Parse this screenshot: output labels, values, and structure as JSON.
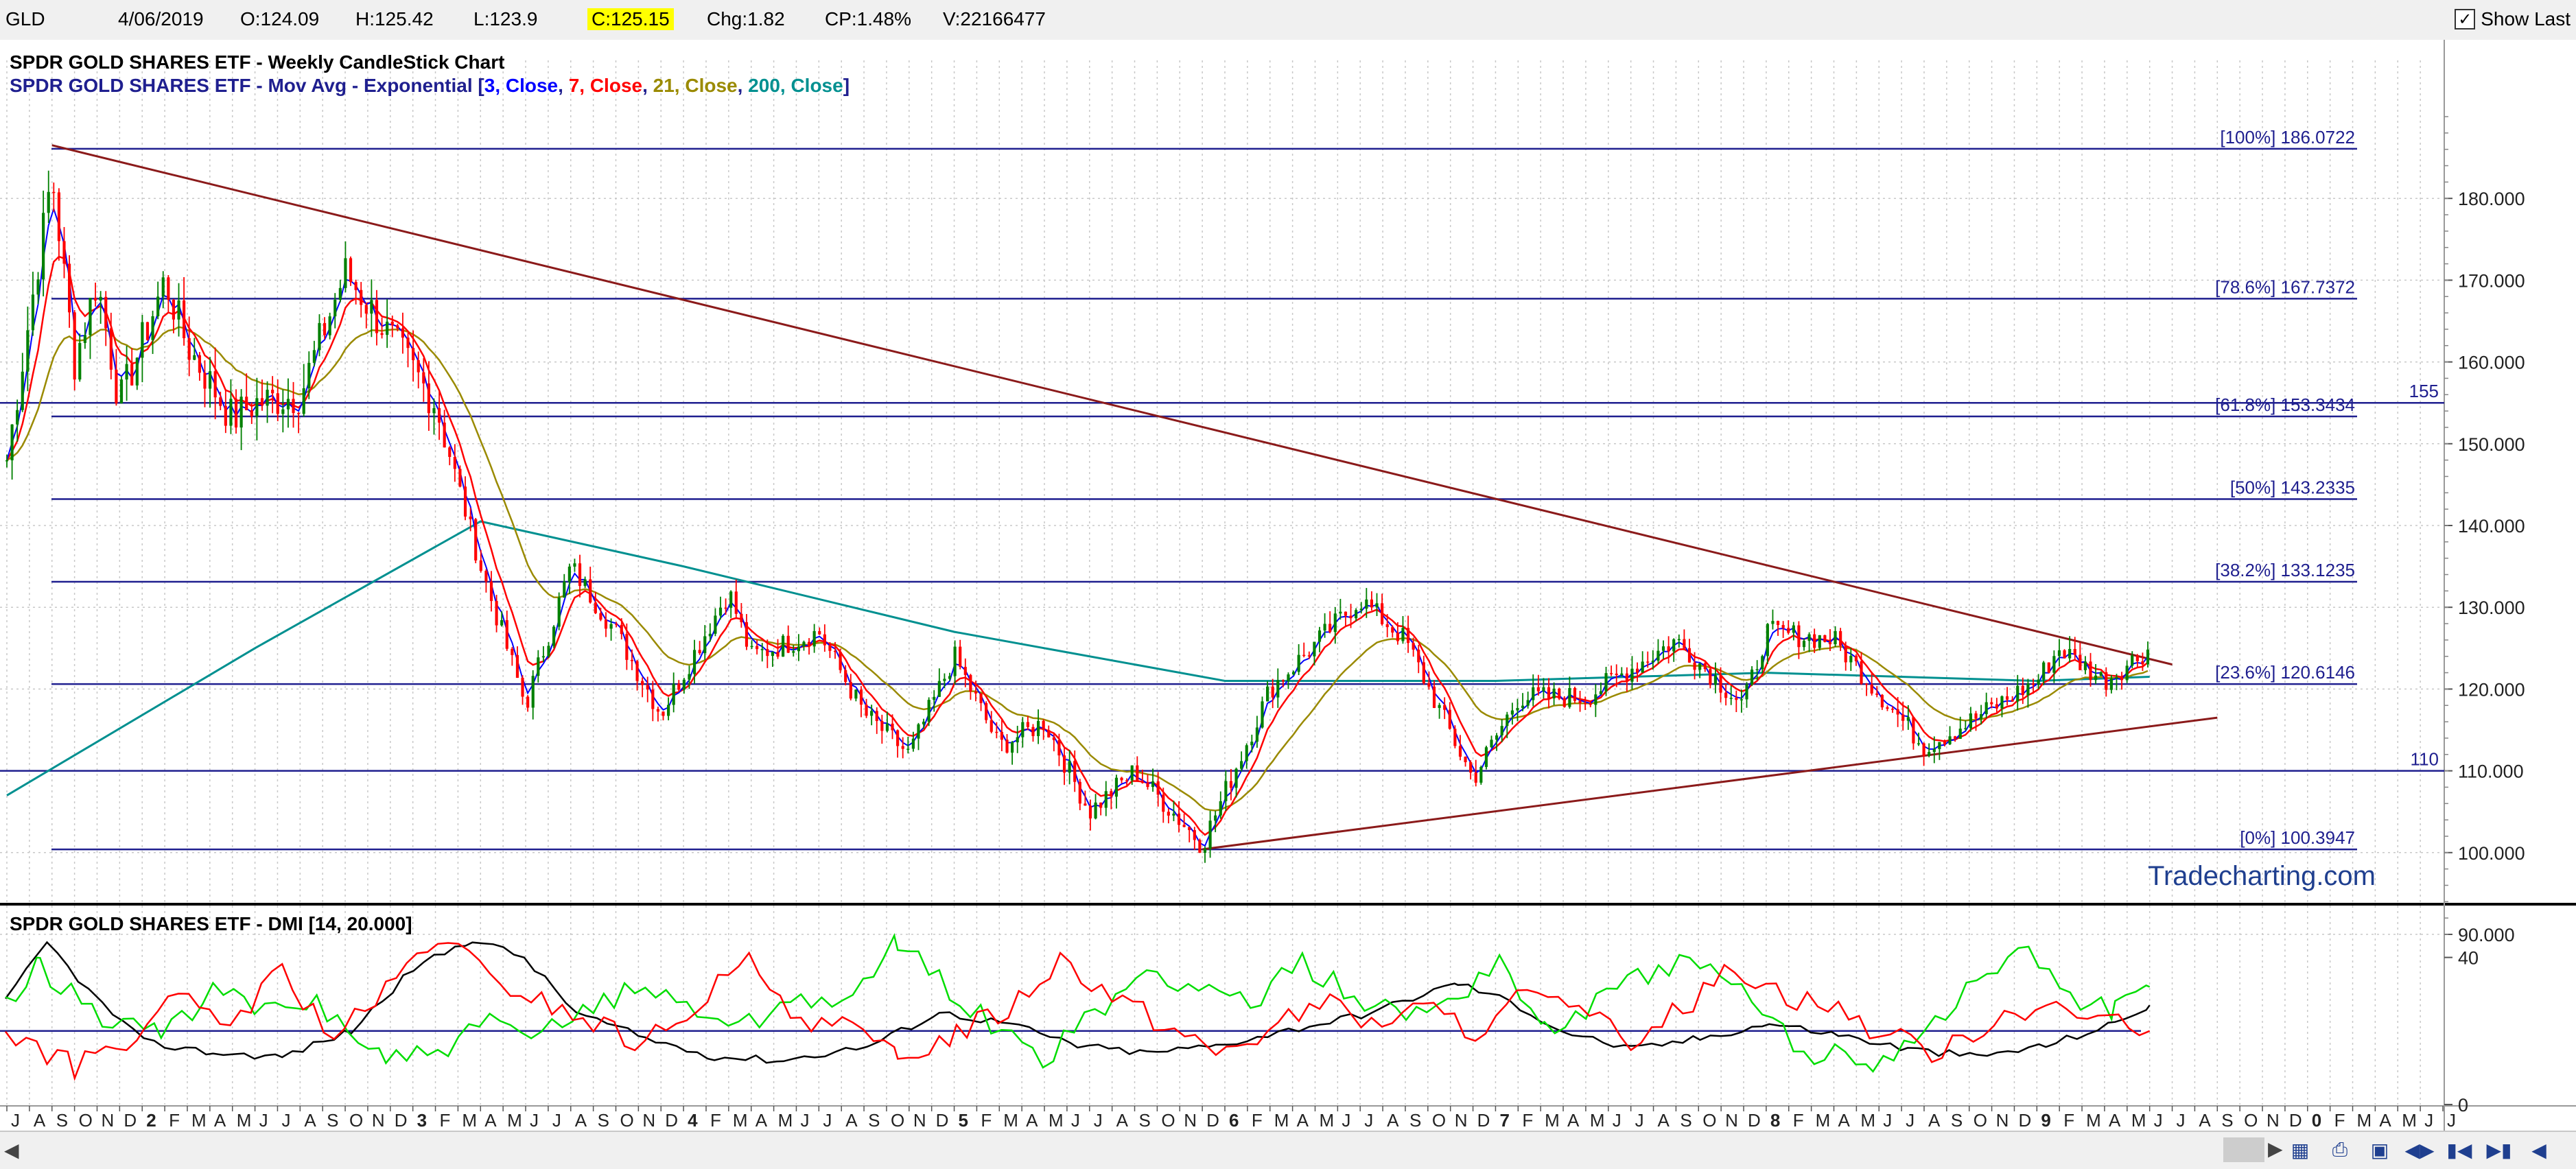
{
  "header": {
    "symbol": "GLD",
    "date": "4/06/2019",
    "open": "O:124.09",
    "high": "H:125.42",
    "low": "L:123.9",
    "close": "C:125.15",
    "change": "Chg:1.82",
    "change_pct": "CP:1.48%",
    "volume": "V:22166477",
    "show_last_label": "Show Last",
    "show_last_checked": true
  },
  "colors": {
    "up_candle": "#008000",
    "down_candle": "#ff0000",
    "fib_line": "#1f1f8f",
    "trend_line": "#8b1a1a",
    "ma3": "#0000ff",
    "ma7": "#ff0000",
    "ma21": "#9a8a00",
    "ma200": "#009090",
    "di_plus": "#00dd00",
    "di_minus": "#ff0000",
    "adx": "#000000",
    "watermark": "#1f3f8f"
  },
  "icons": {
    "scroll_left": "chevron-left-icon",
    "scroll_right": "chevron-right-icon",
    "nav": [
      "chart-settings-icon",
      "print-icon",
      "save-icon",
      "scroll-both-icon",
      "first-icon",
      "last-icon",
      "prev-icon"
    ]
  },
  "chart_data": [
    {
      "type": "candlestick",
      "title": "SPDR GOLD SHARES ETF - Weekly CandleStick Chart",
      "subtitle": {
        "prefix": "SPDR GOLD SHARES ETF - Mov Avg - Exponential [",
        "items": [
          {
            "text": "3, Close",
            "color": "#0000ff"
          },
          {
            "text": "7, Close",
            "color": "#ff0000"
          },
          {
            "text": "21, Close",
            "color": "#9a8a00"
          },
          {
            "text": "200, Close",
            "color": "#009090"
          }
        ],
        "suffix": "]"
      },
      "watermark": "Tradecharting.com",
      "ylim": [
        90,
        190
      ],
      "yticks": [
        "180.000",
        "170.000",
        "160.000",
        "150.000",
        "140.000",
        "130.000",
        "120.000",
        "110.000",
        "100.000",
        "90.000"
      ],
      "fib_levels": [
        {
          "label": "[100%] 186.0722",
          "value": 186.0722
        },
        {
          "label": "[78.6%] 167.7372",
          "value": 167.7372
        },
        {
          "label": "[61.8%] 153.3434",
          "value": 153.3434
        },
        {
          "label": "[50%] 143.2335",
          "value": 143.2335
        },
        {
          "label": "[38.2%] 133.1235",
          "value": 133.1235
        },
        {
          "label": "[23.6%] 120.6146",
          "value": 120.6146
        },
        {
          "label": "[0%] 100.3947",
          "value": 100.3947
        }
      ],
      "horizontal_lines": [
        {
          "label": "155",
          "value": 155
        },
        {
          "label": "110",
          "value": 110
        }
      ],
      "trend_lines": [
        {
          "from": [
            "2011-09",
            186.5
          ],
          "to": [
            "2019-07",
            123
          ]
        },
        {
          "from": [
            "2015-12",
            100.4
          ],
          "to": [
            "2019-09",
            116.5
          ]
        }
      ],
      "price_path": [
        [
          "2011-07",
          148
        ],
        [
          "2011-09",
          183
        ],
        [
          "2011-10",
          160
        ],
        [
          "2011-11",
          170
        ],
        [
          "2011-12",
          155
        ],
        [
          "2012-02",
          170
        ],
        [
          "2012-03",
          162
        ],
        [
          "2012-05",
          153
        ],
        [
          "2012-06",
          155
        ],
        [
          "2012-08",
          156
        ],
        [
          "2012-10",
          171
        ],
        [
          "2012-12",
          163
        ],
        [
          "2013-02",
          155
        ],
        [
          "2013-04",
          135
        ],
        [
          "2013-06",
          118
        ],
        [
          "2013-08",
          135
        ],
        [
          "2013-10",
          127
        ],
        [
          "2013-12",
          117
        ],
        [
          "2014-03",
          132
        ],
        [
          "2014-04",
          124
        ],
        [
          "2014-07",
          127
        ],
        [
          "2014-09",
          117
        ],
        [
          "2014-11",
          112
        ],
        [
          "2015-01",
          124
        ],
        [
          "2015-03",
          113
        ],
        [
          "2015-05",
          116
        ],
        [
          "2015-07",
          105
        ],
        [
          "2015-09",
          110
        ],
        [
          "2015-12",
          101
        ],
        [
          "2016-03",
          120
        ],
        [
          "2016-07",
          131
        ],
        [
          "2016-09",
          126
        ],
        [
          "2016-12",
          109
        ],
        [
          "2017-02",
          119
        ],
        [
          "2017-05",
          119
        ],
        [
          "2017-09",
          126
        ],
        [
          "2017-12",
          118
        ],
        [
          "2018-01",
          127
        ],
        [
          "2018-04",
          126
        ],
        [
          "2018-08",
          113
        ],
        [
          "2018-10",
          116
        ],
        [
          "2019-01",
          121
        ],
        [
          "2019-02",
          125
        ],
        [
          "2019-04",
          121
        ],
        [
          "2019-06",
          125
        ]
      ],
      "ma200_path": [
        [
          "2011-07",
          107
        ],
        [
          "2012-06",
          125
        ],
        [
          "2013-04",
          140.5
        ],
        [
          "2014-01",
          135
        ],
        [
          "2015-01",
          127
        ],
        [
          "2016-01",
          121
        ],
        [
          "2017-01",
          121
        ],
        [
          "2018-01",
          122
        ],
        [
          "2019-01",
          121
        ],
        [
          "2019-06",
          121.5
        ]
      ],
      "x_axis": {
        "start": "2011-07",
        "end": "2020-07",
        "month_labels": [
          "J",
          "A",
          "S",
          "O",
          "N",
          "D",
          "2",
          "F",
          "M",
          "A",
          "M",
          "J",
          "J",
          "A",
          "S",
          "O",
          "N",
          "D",
          "3",
          "F",
          "M",
          "A",
          "M",
          "J",
          "J",
          "A",
          "S",
          "O",
          "N",
          "D",
          "4",
          "F",
          "M",
          "A",
          "M",
          "J",
          "J",
          "A",
          "S",
          "O",
          "N",
          "D",
          "5",
          "F",
          "M",
          "A",
          "M",
          "J",
          "J",
          "A",
          "S",
          "O",
          "N",
          "D",
          "6",
          "F",
          "M",
          "A",
          "M",
          "J",
          "J",
          "A",
          "S",
          "O",
          "N",
          "D",
          "7",
          "F",
          "M",
          "A",
          "M",
          "J",
          "J",
          "A",
          "S",
          "O",
          "N",
          "D",
          "8",
          "F",
          "M",
          "A",
          "M",
          "J",
          "J",
          "A",
          "S",
          "O",
          "N",
          "D",
          "9",
          "F",
          "M",
          "A",
          "M",
          "J",
          "J",
          "A",
          "S",
          "O",
          "N",
          "D",
          "0",
          "F",
          "M",
          "A",
          "M",
          "J",
          "J"
        ]
      }
    },
    {
      "type": "line",
      "title": "SPDR GOLD SHARES ETF - DMI [14, 20.000]",
      "ylim": [
        0,
        50
      ],
      "yticks": [
        "40",
        "0"
      ],
      "reference_line": 20,
      "series": [
        {
          "key": "adx",
          "color": "#000000",
          "values": [
            [
              0,
              28
            ],
            [
              12,
              44
            ],
            [
              25,
              30
            ],
            [
              40,
              17
            ],
            [
              60,
              14
            ],
            [
              80,
              13
            ],
            [
              100,
              20
            ],
            [
              118,
              37
            ],
            [
              135,
              45
            ],
            [
              150,
              40
            ],
            [
              165,
              25
            ],
            [
              185,
              18
            ],
            [
              205,
              13
            ],
            [
              225,
              12
            ],
            [
              250,
              16
            ],
            [
              270,
              25
            ],
            [
              290,
              22
            ],
            [
              310,
              16
            ],
            [
              330,
              14
            ],
            [
              350,
              16
            ],
            [
              365,
              19
            ],
            [
              380,
              22
            ],
            [
              395,
              25
            ],
            [
              410,
              30
            ],
            [
              420,
              33
            ],
            [
              435,
              28
            ],
            [
              450,
              20
            ],
            [
              470,
              15
            ],
            [
              490,
              18
            ],
            [
              510,
              22
            ],
            [
              530,
              19
            ],
            [
              550,
              15
            ],
            [
              570,
              13
            ],
            [
              590,
              16
            ],
            [
              610,
              22
            ],
            [
              620,
              27
            ]
          ]
        },
        {
          "key": "di_plus",
          "color": "#00dd00",
          "values": [
            [
              0,
              26
            ],
            [
              10,
              38
            ],
            [
              25,
              25
            ],
            [
              45,
              20
            ],
            [
              60,
              30
            ],
            [
              75,
              25
            ],
            [
              90,
              28
            ],
            [
              110,
              12
            ],
            [
              125,
              14
            ],
            [
              140,
              22
            ],
            [
              155,
              18
            ],
            [
              170,
              28
            ],
            [
              185,
              32
            ],
            [
              200,
              26
            ],
            [
              215,
              22
            ],
            [
              230,
              30
            ],
            [
              245,
              28
            ],
            [
              258,
              44
            ],
            [
              270,
              34
            ],
            [
              285,
              22
            ],
            [
              300,
              12
            ],
            [
              315,
              24
            ],
            [
              330,
              36
            ],
            [
              345,
              32
            ],
            [
              360,
              28
            ],
            [
              375,
              38
            ],
            [
              390,
              30
            ],
            [
              405,
              24
            ],
            [
              420,
              30
            ],
            [
              432,
              40
            ],
            [
              445,
              20
            ],
            [
              460,
              28
            ],
            [
              475,
              36
            ],
            [
              490,
              38
            ],
            [
              505,
              28
            ],
            [
              520,
              14
            ],
            [
              540,
              12
            ],
            [
              555,
              20
            ],
            [
              570,
              34
            ],
            [
              585,
              42
            ],
            [
              600,
              28
            ],
            [
              610,
              26
            ],
            [
              620,
              32
            ]
          ]
        },
        {
          "key": "di_minus",
          "color": "#ff0000",
          "values": [
            [
              0,
              20
            ],
            [
              20,
              10
            ],
            [
              35,
              18
            ],
            [
              50,
              28
            ],
            [
              65,
              22
            ],
            [
              80,
              36
            ],
            [
              95,
              18
            ],
            [
              110,
              30
            ],
            [
              125,
              46
            ],
            [
              140,
              34
            ],
            [
              155,
              28
            ],
            [
              170,
              22
            ],
            [
              185,
              16
            ],
            [
              200,
              28
            ],
            [
              215,
              38
            ],
            [
              230,
              24
            ],
            [
              245,
              20
            ],
            [
              258,
              12
            ],
            [
              275,
              20
            ],
            [
              290,
              26
            ],
            [
              305,
              40
            ],
            [
              320,
              30
            ],
            [
              335,
              22
            ],
            [
              350,
              14
            ],
            [
              365,
              20
            ],
            [
              380,
              28
            ],
            [
              395,
              22
            ],
            [
              410,
              26
            ],
            [
              425,
              20
            ],
            [
              440,
              30
            ],
            [
              455,
              24
            ],
            [
              470,
              18
            ],
            [
              485,
              26
            ],
            [
              500,
              38
            ],
            [
              515,
              30
            ],
            [
              530,
              26
            ],
            [
              545,
              18
            ],
            [
              560,
              14
            ],
            [
              575,
              24
            ],
            [
              590,
              28
            ],
            [
              605,
              22
            ],
            [
              620,
              20
            ]
          ]
        }
      ]
    }
  ]
}
